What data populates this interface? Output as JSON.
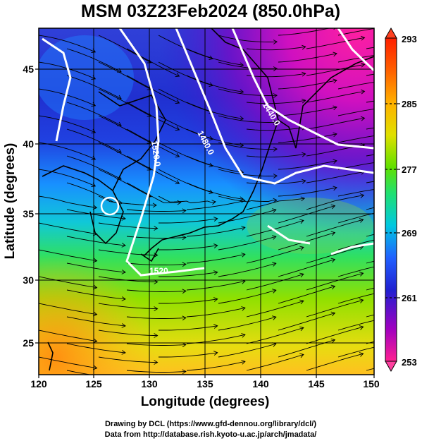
{
  "title": "MSM 03Z23Feb2024 (850.0hPa)",
  "x_axis": {
    "label": "Longitude (degrees)",
    "range": [
      120,
      150
    ],
    "ticks": [
      "120",
      "125",
      "130",
      "135",
      "140",
      "145",
      "150"
    ]
  },
  "y_axis": {
    "label": "Latitude  (degrees)",
    "range": [
      22.4,
      47.6
    ],
    "ticks": [
      "25",
      "30",
      "35",
      "40",
      "45"
    ]
  },
  "colorbar": {
    "range": [
      253,
      293
    ],
    "ticks": [
      "293",
      "285",
      "277",
      "269",
      "261",
      "253"
    ],
    "colors": [
      "#ff2090",
      "#a000c0",
      "#2020d0",
      "#2060ff",
      "#00c8e0",
      "#20e070",
      "#40e000",
      "#a0e000",
      "#e0e000",
      "#ffb000",
      "#ff6000",
      "#ff2000"
    ]
  },
  "contours": [
    {
      "label": "1440.0"
    },
    {
      "label": "1480.0"
    },
    {
      "label": "1520.0"
    },
    {
      "label": "1520"
    }
  ],
  "credits": {
    "line1": "Drawing by DCL (https://www.gfd-dennou.org/library/dcl/)",
    "line2": "Data from http://database.rish.kyoto-u.ac.jp/arch/jmadata/"
  }
}
